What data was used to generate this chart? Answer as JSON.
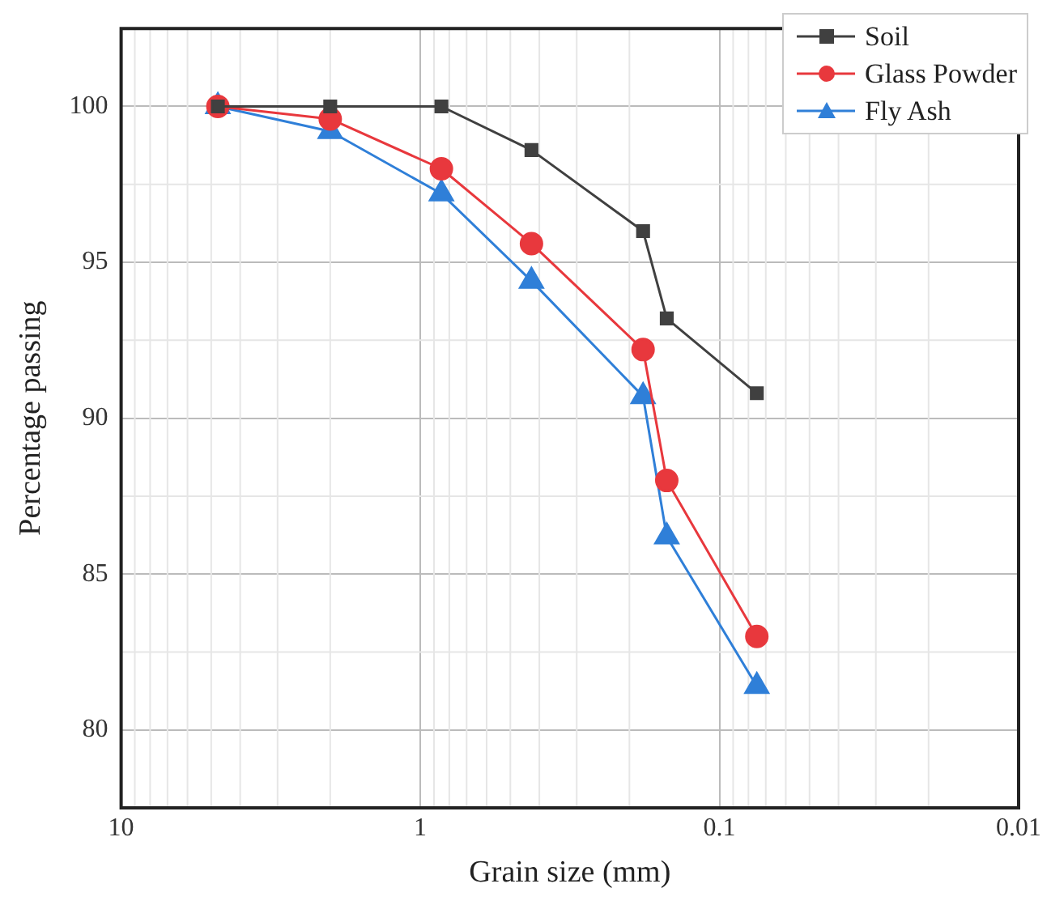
{
  "chart_data": {
    "type": "line",
    "xlabel": "Grain size (mm)",
    "ylabel": "Percentage passing",
    "x": [
      4.75,
      2.0,
      0.85,
      0.425,
      0.18,
      0.15,
      0.075
    ],
    "series": [
      {
        "name": "Soil",
        "color": "#404040",
        "marker": "square",
        "values": [
          100,
          100,
          100,
          98.6,
          96.0,
          93.2,
          90.8
        ]
      },
      {
        "name": "Glass Powder",
        "color": "#e8383d",
        "marker": "circle",
        "values": [
          100,
          99.6,
          98.0,
          95.6,
          92.2,
          88.0,
          83.0
        ]
      },
      {
        "name": "Fly Ash",
        "color": "#2f7fd8",
        "marker": "triangle",
        "values": [
          100,
          99.2,
          97.2,
          94.4,
          90.7,
          86.2,
          81.4
        ]
      }
    ],
    "log": "x",
    "xlim": [
      10,
      0.01
    ],
    "xticks": [
      10,
      1,
      0.1,
      0.01
    ],
    "ylim": [
      77.5,
      102.5
    ],
    "yticks": [
      80,
      85,
      90,
      95,
      100
    ],
    "grid": true,
    "legend": "top right",
    "line_style": "solid"
  }
}
